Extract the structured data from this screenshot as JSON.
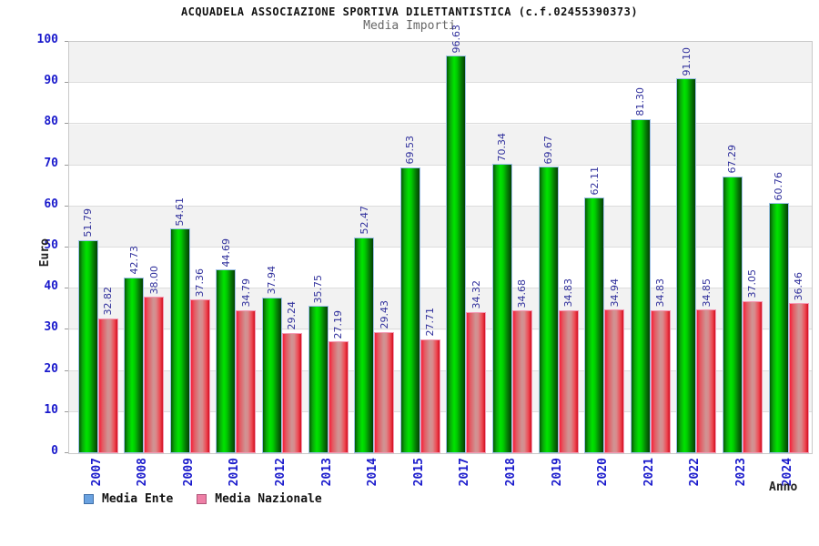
{
  "header": {
    "title": "ACQUADELA ASSOCIAZIONE SPORTIVA DILETTANTISTICA (c.f.02455390373)",
    "subtitle": "Media Importi"
  },
  "axes": {
    "y_label": "Euro",
    "x_label": "Anno",
    "y_ticks": [
      0,
      10,
      20,
      30,
      40,
      50,
      60,
      70,
      80,
      90,
      100
    ]
  },
  "legend": {
    "items": [
      {
        "label": "Media Ente",
        "swatch_fill": "#6aa2e0",
        "swatch_border": "#3f6fa8"
      },
      {
        "label": "Media Nazionale",
        "swatch_fill": "#ee7fa6",
        "swatch_border": "#b05578"
      }
    ]
  },
  "colors": {
    "bar_green": "#00cc00",
    "bar_green_outline": "#9ec1e8",
    "bar_red": "#e04050",
    "bar_red_outline": "#f49ab5",
    "axis_tick_text": "#1a1acc",
    "value_label_text": "#30309c",
    "band_gray": "#f2f2f2",
    "grid_line": "#dcdcdc"
  },
  "chart_data": {
    "type": "bar",
    "title": "ACQUADELA ASSOCIAZIONE SPORTIVA DILETTANTISTICA (c.f.02455390373)",
    "subtitle": "Media Importi",
    "xlabel": "Anno",
    "ylabel": "Euro",
    "ylim": [
      0,
      100
    ],
    "grid": true,
    "legend_position": "bottom",
    "categories": [
      "2007",
      "2008",
      "2009",
      "2010",
      "2012",
      "2013",
      "2014",
      "2015",
      "2017",
      "2018",
      "2019",
      "2020",
      "2021",
      "2022",
      "2023",
      "2024"
    ],
    "series": [
      {
        "name": "Media Ente",
        "values": [
          51.79,
          42.73,
          54.61,
          44.69,
          37.94,
          35.75,
          52.47,
          69.53,
          96.63,
          70.34,
          69.67,
          62.11,
          81.3,
          91.1,
          67.29,
          60.76
        ],
        "labels": [
          "51.79",
          "42.73",
          "54.61",
          "44.69",
          "37.94",
          "35.75",
          "52.47",
          "69.53",
          "96.63",
          "70.34",
          "69.67",
          "62.11",
          "81.30",
          "91.10",
          "67.29",
          "60.76"
        ]
      },
      {
        "name": "Media Nazionale",
        "values": [
          32.82,
          38.0,
          37.36,
          34.79,
          29.24,
          27.19,
          29.43,
          27.71,
          34.32,
          34.68,
          34.83,
          34.94,
          34.83,
          34.85,
          37.05,
          36.46
        ],
        "labels": [
          "32.82",
          "38.00",
          "37.36",
          "34.79",
          "29.24",
          "27.19",
          "29.43",
          "27.71",
          "34.32",
          "34.68",
          "34.83",
          "34.94",
          "34.83",
          "34.85",
          "37.05",
          "36.46"
        ]
      }
    ]
  }
}
